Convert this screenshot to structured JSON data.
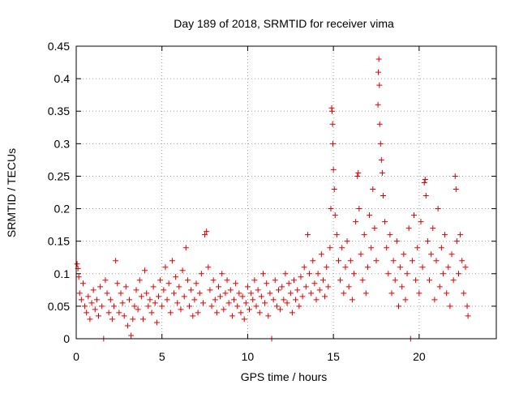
{
  "chart_data": {
    "type": "scatter",
    "title": "Day 189 of 2018, SRMTID for receiver vima",
    "xlabel": "GPS time / hours",
    "ylabel": "SRMTID / TECUs",
    "xlim": [
      0,
      24.5
    ],
    "ylim": [
      0,
      0.45
    ],
    "xticks": [
      0,
      5,
      10,
      15,
      20
    ],
    "yticks": [
      0,
      0.05,
      0.1,
      0.15,
      0.2,
      0.25,
      0.3,
      0.35,
      0.4,
      0.45
    ],
    "ytick_labels": [
      "0",
      "0.05",
      "0.1",
      "0.15",
      "0.2",
      "0.25",
      "0.3",
      "0.35",
      "0.4",
      "0.45"
    ],
    "grid": true,
    "marker": "+",
    "color": "#e00000",
    "series": [
      {
        "name": "vima",
        "points": [
          [
            0.05,
            0.115
          ],
          [
            0.1,
            0.108
          ],
          [
            0.15,
            0.095
          ],
          [
            0.2,
            0.07
          ],
          [
            0.3,
            0.06
          ],
          [
            0.4,
            0.085
          ],
          [
            0.5,
            0.05
          ],
          [
            0.6,
            0.04
          ],
          [
            0.7,
            0.065
          ],
          [
            0.8,
            0.03
          ],
          [
            0.9,
            0.055
          ],
          [
            1.0,
            0.075
          ],
          [
            1.1,
            0.045
          ],
          [
            1.2,
            0.06
          ],
          [
            1.3,
            0.035
          ],
          [
            1.4,
            0.08
          ],
          [
            1.5,
            0.05
          ],
          [
            1.6,
            0.0
          ],
          [
            1.7,
            0.09
          ],
          [
            1.8,
            0.07
          ],
          [
            1.9,
            0.04
          ],
          [
            2.0,
            0.06
          ],
          [
            2.1,
            0.03
          ],
          [
            2.2,
            0.05
          ],
          [
            2.3,
            0.12
          ],
          [
            2.4,
            0.085
          ],
          [
            2.5,
            0.04
          ],
          [
            2.6,
            0.07
          ],
          [
            2.7,
            0.055
          ],
          [
            2.8,
            0.035
          ],
          [
            2.9,
            0.08
          ],
          [
            3.0,
            0.02
          ],
          [
            3.1,
            0.06
          ],
          [
            3.2,
            0.005
          ],
          [
            3.3,
            0.03
          ],
          [
            3.4,
            0.05
          ],
          [
            3.5,
            0.075
          ],
          [
            3.6,
            0.045
          ],
          [
            3.7,
            0.09
          ],
          [
            3.8,
            0.065
          ],
          [
            3.9,
            0.03
          ],
          [
            4.0,
            0.105
          ],
          [
            4.1,
            0.07
          ],
          [
            4.2,
            0.05
          ],
          [
            4.3,
            0.06
          ],
          [
            4.4,
            0.04
          ],
          [
            4.5,
            0.08
          ],
          [
            4.6,
            0.055
          ],
          [
            4.7,
            0.025
          ],
          [
            4.8,
            0.065
          ],
          [
            4.9,
            0.09
          ],
          [
            5.0,
            0.05
          ],
          [
            5.1,
            0.075
          ],
          [
            5.2,
            0.11
          ],
          [
            5.3,
            0.06
          ],
          [
            5.4,
            0.085
          ],
          [
            5.5,
            0.04
          ],
          [
            5.6,
            0.12
          ],
          [
            5.7,
            0.07
          ],
          [
            5.8,
            0.095
          ],
          [
            5.9,
            0.055
          ],
          [
            6.0,
            0.08
          ],
          [
            6.1,
            0.045
          ],
          [
            6.2,
            0.105
          ],
          [
            6.3,
            0.065
          ],
          [
            6.4,
            0.14
          ],
          [
            6.5,
            0.09
          ],
          [
            6.6,
            0.05
          ],
          [
            6.7,
            0.075
          ],
          [
            6.8,
            0.035
          ],
          [
            6.9,
            0.06
          ],
          [
            7.0,
            0.085
          ],
          [
            7.1,
            0.04
          ],
          [
            7.2,
            0.07
          ],
          [
            7.3,
            0.1
          ],
          [
            7.4,
            0.055
          ],
          [
            7.5,
            0.16
          ],
          [
            7.6,
            0.165
          ],
          [
            7.7,
            0.11
          ],
          [
            7.8,
            0.075
          ],
          [
            7.9,
            0.05
          ],
          [
            8.0,
            0.09
          ],
          [
            8.1,
            0.06
          ],
          [
            8.2,
            0.04
          ],
          [
            8.3,
            0.08
          ],
          [
            8.4,
            0.065
          ],
          [
            8.5,
            0.1
          ],
          [
            8.6,
            0.045
          ],
          [
            8.7,
            0.07
          ],
          [
            8.8,
            0.09
          ],
          [
            8.9,
            0.055
          ],
          [
            9.0,
            0.075
          ],
          [
            9.1,
            0.035
          ],
          [
            9.2,
            0.06
          ],
          [
            9.3,
            0.085
          ],
          [
            9.4,
            0.05
          ],
          [
            9.5,
            0.07
          ],
          [
            9.6,
            0.04
          ],
          [
            9.7,
            0.065
          ],
          [
            9.8,
            0.03
          ],
          [
            9.9,
            0.055
          ],
          [
            10.0,
            0.08
          ],
          [
            10.1,
            0.045
          ],
          [
            10.2,
            0.07
          ],
          [
            10.3,
            0.06
          ],
          [
            10.4,
            0.09
          ],
          [
            10.5,
            0.05
          ],
          [
            10.6,
            0.075
          ],
          [
            10.7,
            0.04
          ],
          [
            10.8,
            0.065
          ],
          [
            10.9,
            0.1
          ],
          [
            11.0,
            0.055
          ],
          [
            11.1,
            0.085
          ],
          [
            11.2,
            0.035
          ],
          [
            11.3,
            0.07
          ],
          [
            11.4,
            0.0
          ],
          [
            11.5,
            0.06
          ],
          [
            11.6,
            0.09
          ],
          [
            11.7,
            0.05
          ],
          [
            11.8,
            0.075
          ],
          [
            11.9,
            0.045
          ],
          [
            12.0,
            0.08
          ],
          [
            12.1,
            0.06
          ],
          [
            12.2,
            0.1
          ],
          [
            12.3,
            0.055
          ],
          [
            12.4,
            0.085
          ],
          [
            12.5,
            0.07
          ],
          [
            12.6,
            0.04
          ],
          [
            12.7,
            0.09
          ],
          [
            12.8,
            0.06
          ],
          [
            12.9,
            0.075
          ],
          [
            13.0,
            0.05
          ],
          [
            13.1,
            0.095
          ],
          [
            13.2,
            0.065
          ],
          [
            13.3,
            0.11
          ],
          [
            13.4,
            0.08
          ],
          [
            13.5,
            0.16
          ],
          [
            13.6,
            0.1
          ],
          [
            13.7,
            0.07
          ],
          [
            13.8,
            0.12
          ],
          [
            13.9,
            0.085
          ],
          [
            14.0,
            0.06
          ],
          [
            14.1,
            0.1
          ],
          [
            14.2,
            0.075
          ],
          [
            14.3,
            0.13
          ],
          [
            14.4,
            0.09
          ],
          [
            14.5,
            0.065
          ],
          [
            14.6,
            0.11
          ],
          [
            14.7,
            0.08
          ],
          [
            14.8,
            0.14
          ],
          [
            14.85,
            0.2
          ],
          [
            14.9,
            0.355
          ],
          [
            14.92,
            0.35
          ],
          [
            14.95,
            0.33
          ],
          [
            14.97,
            0.3
          ],
          [
            15.0,
            0.26
          ],
          [
            15.05,
            0.23
          ],
          [
            15.1,
            0.19
          ],
          [
            15.2,
            0.16
          ],
          [
            15.3,
            0.12
          ],
          [
            15.4,
            0.09
          ],
          [
            15.5,
            0.14
          ],
          [
            15.6,
            0.07
          ],
          [
            15.7,
            0.11
          ],
          [
            15.8,
            0.15
          ],
          [
            15.9,
            0.08
          ],
          [
            16.0,
            0.12
          ],
          [
            16.1,
            0.06
          ],
          [
            16.2,
            0.1
          ],
          [
            16.3,
            0.18
          ],
          [
            16.4,
            0.25
          ],
          [
            16.45,
            0.255
          ],
          [
            16.5,
            0.2
          ],
          [
            16.6,
            0.13
          ],
          [
            16.7,
            0.09
          ],
          [
            16.8,
            0.16
          ],
          [
            16.9,
            0.07
          ],
          [
            17.0,
            0.11
          ],
          [
            17.1,
            0.19
          ],
          [
            17.2,
            0.14
          ],
          [
            17.3,
            0.23
          ],
          [
            17.4,
            0.17
          ],
          [
            17.5,
            0.12
          ],
          [
            17.6,
            0.36
          ],
          [
            17.62,
            0.41
          ],
          [
            17.65,
            0.43
          ],
          [
            17.68,
            0.39
          ],
          [
            17.7,
            0.33
          ],
          [
            17.75,
            0.3
          ],
          [
            17.8,
            0.275
          ],
          [
            17.85,
            0.255
          ],
          [
            17.9,
            0.22
          ],
          [
            18.0,
            0.18
          ],
          [
            18.1,
            0.14
          ],
          [
            18.2,
            0.1
          ],
          [
            18.3,
            0.16
          ],
          [
            18.4,
            0.07
          ],
          [
            18.5,
            0.12
          ],
          [
            18.6,
            0.09
          ],
          [
            18.7,
            0.15
          ],
          [
            18.8,
            0.05
          ],
          [
            18.9,
            0.11
          ],
          [
            19.0,
            0.08
          ],
          [
            19.1,
            0.13
          ],
          [
            19.2,
            0.06
          ],
          [
            19.3,
            0.1
          ],
          [
            19.4,
            0.17
          ],
          [
            19.5,
            0.0
          ],
          [
            19.6,
            0.12
          ],
          [
            19.7,
            0.19
          ],
          [
            19.8,
            0.09
          ],
          [
            19.9,
            0.14
          ],
          [
            20.0,
            0.07
          ],
          [
            20.1,
            0.18
          ],
          [
            20.2,
            0.11
          ],
          [
            20.3,
            0.24
          ],
          [
            20.35,
            0.245
          ],
          [
            20.4,
            0.22
          ],
          [
            20.5,
            0.15
          ],
          [
            20.6,
            0.09
          ],
          [
            20.7,
            0.13
          ],
          [
            20.8,
            0.17
          ],
          [
            20.9,
            0.06
          ],
          [
            21.0,
            0.12
          ],
          [
            21.1,
            0.2
          ],
          [
            21.2,
            0.08
          ],
          [
            21.3,
            0.14
          ],
          [
            21.4,
            0.1
          ],
          [
            21.5,
            0.16
          ],
          [
            21.6,
            0.07
          ],
          [
            21.7,
            0.11
          ],
          [
            21.8,
            0.05
          ],
          [
            21.9,
            0.13
          ],
          [
            22.0,
            0.09
          ],
          [
            22.1,
            0.25
          ],
          [
            22.15,
            0.23
          ],
          [
            22.2,
            0.15
          ],
          [
            22.3,
            0.1
          ],
          [
            22.4,
            0.16
          ],
          [
            22.5,
            0.12
          ],
          [
            22.6,
            0.07
          ],
          [
            22.7,
            0.11
          ],
          [
            22.8,
            0.05
          ],
          [
            22.85,
            0.035
          ]
        ]
      }
    ]
  }
}
